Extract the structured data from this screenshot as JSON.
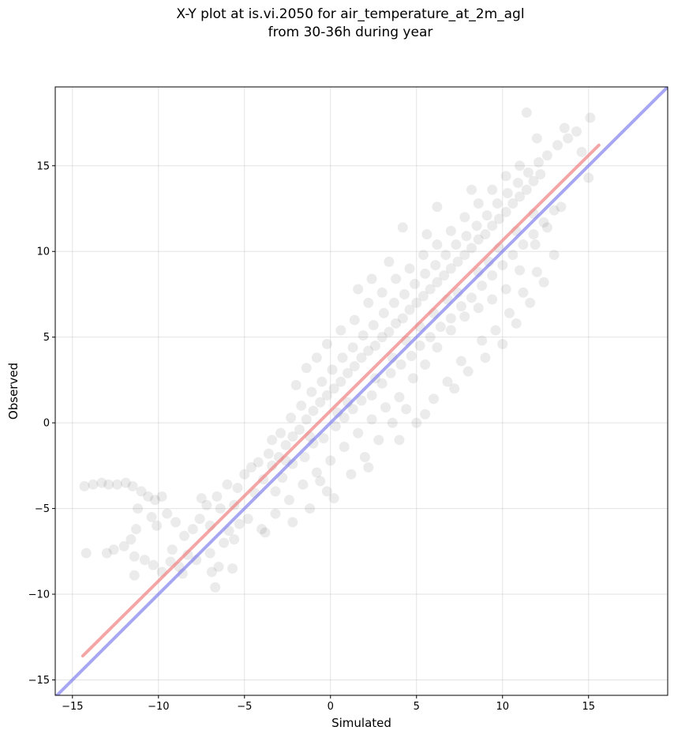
{
  "chart_data": {
    "type": "scatter",
    "title": "X-Y plot at is.vi.2050 for air_temperature_at_2m_agl\nfrom 30-36h during year",
    "xlabel": "Simulated",
    "ylabel": "Observed",
    "xlim": [
      -16,
      19.6
    ],
    "ylim": [
      -15.9,
      19.6
    ],
    "xticks": [
      -15,
      -10,
      -5,
      0,
      5,
      10,
      15
    ],
    "yticks": [
      -15,
      -10,
      -5,
      0,
      5,
      10,
      15
    ],
    "xtick_labels": [
      "−15",
      "−10",
      "−5",
      "0",
      "5",
      "10",
      "15"
    ],
    "ytick_labels": [
      "−15",
      "−10",
      "−5",
      "0",
      "5",
      "10",
      "15"
    ],
    "grid": true,
    "point_style": {
      "color": "#000000",
      "alpha": 0.08
    },
    "regression_line": {
      "color": "#f08080",
      "x": [
        -14.4,
        15.6
      ],
      "y": [
        -13.6,
        16.2
      ]
    },
    "identity_line": {
      "color": "#8080ee",
      "x": [
        -16,
        19.6
      ],
      "y": [
        -16,
        19.6
      ]
    },
    "points": [
      [
        -14.3,
        -3.7
      ],
      [
        -13.8,
        -3.6
      ],
      [
        -13.3,
        -3.5
      ],
      [
        -12.9,
        -3.6
      ],
      [
        -12.4,
        -3.6
      ],
      [
        -11.9,
        -3.5
      ],
      [
        -11.5,
        -3.7
      ],
      [
        -11.0,
        -4.0
      ],
      [
        -10.6,
        -4.3
      ],
      [
        -10.2,
        -4.5
      ],
      [
        -9.8,
        -4.3
      ],
      [
        -10.4,
        -5.5
      ],
      [
        -11.2,
        -5.0
      ],
      [
        -10.1,
        -6.0
      ],
      [
        -9.5,
        -5.3
      ],
      [
        -9.0,
        -5.8
      ],
      [
        -11.3,
        -6.2
      ],
      [
        -11.6,
        -6.8
      ],
      [
        -12.0,
        -7.2
      ],
      [
        -12.6,
        -7.4
      ],
      [
        -14.2,
        -7.6
      ],
      [
        -13.0,
        -7.6
      ],
      [
        -11.4,
        -7.8
      ],
      [
        -10.8,
        -8.0
      ],
      [
        -10.3,
        -8.3
      ],
      [
        -9.8,
        -8.7
      ],
      [
        -9.3,
        -8.1
      ],
      [
        -8.8,
        -8.4
      ],
      [
        -8.3,
        -7.7
      ],
      [
        -11.4,
        -8.9
      ],
      [
        -9.2,
        -7.4
      ],
      [
        -8.5,
        -6.6
      ],
      [
        -8.0,
        -6.2
      ],
      [
        -7.6,
        -5.6
      ],
      [
        -7.2,
        -4.8
      ],
      [
        -7.5,
        -4.4
      ],
      [
        -6.9,
        -8.7
      ],
      [
        -6.7,
        -9.6
      ],
      [
        -6.5,
        -8.4
      ],
      [
        -7.0,
        -7.6
      ],
      [
        -6.2,
        -7.0
      ],
      [
        -5.6,
        -6.8
      ],
      [
        -5.7,
        -8.5
      ],
      [
        -5.9,
        -6.3
      ],
      [
        -5.3,
        -5.9
      ],
      [
        -4.8,
        -5.6
      ],
      [
        -6.6,
        -4.3
      ],
      [
        -6.0,
        -3.6
      ],
      [
        -5.0,
        -3.0
      ],
      [
        -4.4,
        -4.1
      ],
      [
        -3.9,
        -3.3
      ],
      [
        -3.4,
        -2.5
      ],
      [
        -3.0,
        -2.0
      ],
      [
        -2.6,
        -1.3
      ],
      [
        -2.2,
        -0.8
      ],
      [
        -1.8,
        -0.4
      ],
      [
        -1.4,
        0.2
      ],
      [
        -1.0,
        0.7
      ],
      [
        -0.6,
        1.2
      ],
      [
        -0.2,
        1.6
      ],
      [
        0.2,
        2.0
      ],
      [
        0.6,
        2.4
      ],
      [
        1.0,
        2.9
      ],
      [
        1.4,
        3.3
      ],
      [
        1.8,
        3.8
      ],
      [
        2.2,
        4.2
      ],
      [
        2.6,
        4.5
      ],
      [
        3.0,
        5.0
      ],
      [
        3.4,
        5.3
      ],
      [
        3.8,
        5.8
      ],
      [
        4.2,
        6.1
      ],
      [
        4.6,
        6.6
      ],
      [
        5.0,
        7.0
      ],
      [
        5.4,
        7.4
      ],
      [
        5.8,
        7.8
      ],
      [
        6.2,
        8.2
      ],
      [
        6.6,
        8.6
      ],
      [
        7.0,
        9.0
      ],
      [
        7.4,
        9.4
      ],
      [
        7.8,
        9.8
      ],
      [
        8.2,
        10.2
      ],
      [
        8.6,
        10.7
      ],
      [
        9.0,
        11.0
      ],
      [
        9.4,
        11.5
      ],
      [
        9.8,
        11.9
      ],
      [
        10.2,
        12.3
      ],
      [
        10.6,
        12.8
      ],
      [
        11.0,
        13.2
      ],
      [
        11.4,
        13.6
      ],
      [
        11.8,
        14.1
      ],
      [
        12.2,
        14.5
      ],
      [
        -3.2,
        -4.0
      ],
      [
        -2.8,
        -3.2
      ],
      [
        -2.2,
        -2.4
      ],
      [
        -1.5,
        -2.0
      ],
      [
        -1.0,
        -1.2
      ],
      [
        -0.4,
        -0.9
      ],
      [
        0.3,
        -0.2
      ],
      [
        0.8,
        0.3
      ],
      [
        1.3,
        0.8
      ],
      [
        1.8,
        1.3
      ],
      [
        2.4,
        1.6
      ],
      [
        3.0,
        2.3
      ],
      [
        3.5,
        2.9
      ],
      [
        4.1,
        3.4
      ],
      [
        4.7,
        3.9
      ],
      [
        5.2,
        4.5
      ],
      [
        5.8,
        5.0
      ],
      [
        6.4,
        5.6
      ],
      [
        7.0,
        6.1
      ],
      [
        7.6,
        6.8
      ],
      [
        8.2,
        7.3
      ],
      [
        8.8,
        8.0
      ],
      [
        9.4,
        8.6
      ],
      [
        10.0,
        9.2
      ],
      [
        10.6,
        9.8
      ],
      [
        11.2,
        10.4
      ],
      [
        11.8,
        11.0
      ],
      [
        12.4,
        11.7
      ],
      [
        13.0,
        12.4
      ],
      [
        -4.2,
        -2.3
      ],
      [
        -3.6,
        -1.8
      ],
      [
        -2.9,
        -0.6
      ],
      [
        -2.3,
        0.3
      ],
      [
        -1.7,
        1.0
      ],
      [
        -1.1,
        1.8
      ],
      [
        -0.5,
        2.4
      ],
      [
        0.1,
        3.1
      ],
      [
        0.7,
        3.8
      ],
      [
        1.3,
        4.4
      ],
      [
        1.9,
        5.1
      ],
      [
        2.5,
        5.7
      ],
      [
        3.1,
        6.4
      ],
      [
        3.7,
        7.0
      ],
      [
        4.3,
        7.5
      ],
      [
        4.9,
        8.1
      ],
      [
        5.5,
        8.7
      ],
      [
        6.1,
        9.2
      ],
      [
        6.7,
        9.8
      ],
      [
        7.3,
        10.4
      ],
      [
        7.9,
        10.9
      ],
      [
        8.5,
        11.5
      ],
      [
        9.1,
        12.1
      ],
      [
        9.7,
        12.8
      ],
      [
        10.3,
        13.4
      ],
      [
        10.9,
        14.0
      ],
      [
        11.5,
        14.6
      ],
      [
        12.1,
        15.2
      ],
      [
        12.6,
        15.6
      ],
      [
        13.2,
        16.2
      ],
      [
        13.8,
        16.6
      ],
      [
        14.3,
        17.0
      ],
      [
        15.1,
        17.8
      ],
      [
        13.6,
        17.2
      ],
      [
        11.4,
        18.1
      ],
      [
        12.0,
        16.6
      ],
      [
        14.6,
        15.8
      ],
      [
        15.0,
        14.3
      ],
      [
        13.4,
        12.6
      ],
      [
        12.6,
        11.4
      ],
      [
        11.9,
        10.4
      ],
      [
        11.0,
        8.9
      ],
      [
        10.2,
        7.8
      ],
      [
        9.4,
        7.2
      ],
      [
        8.6,
        6.7
      ],
      [
        7.8,
        6.2
      ],
      [
        7.0,
        5.4
      ],
      [
        6.2,
        4.4
      ],
      [
        5.5,
        3.4
      ],
      [
        4.8,
        2.6
      ],
      [
        4.0,
        1.5
      ],
      [
        3.2,
        0.9
      ],
      [
        2.4,
        0.2
      ],
      [
        1.6,
        -0.6
      ],
      [
        0.8,
        -1.4
      ],
      [
        0.0,
        -2.2
      ],
      [
        -0.8,
        -2.9
      ],
      [
        -1.6,
        -3.6
      ],
      [
        -2.4,
        -4.5
      ],
      [
        -3.2,
        -5.3
      ],
      [
        -4.0,
        -6.2
      ],
      [
        0.2,
        -4.4
      ],
      [
        -0.6,
        -3.4
      ],
      [
        1.2,
        -3.0
      ],
      [
        2.0,
        -2.0
      ],
      [
        2.8,
        -1.0
      ],
      [
        3.6,
        0.0
      ],
      [
        4.4,
        0.8
      ],
      [
        5.5,
        0.5
      ],
      [
        6.8,
        2.4
      ],
      [
        7.6,
        3.6
      ],
      [
        8.8,
        4.8
      ],
      [
        9.6,
        5.4
      ],
      [
        10.4,
        6.4
      ],
      [
        11.2,
        7.6
      ],
      [
        12.0,
        8.8
      ],
      [
        13.0,
        9.8
      ],
      [
        -1.4,
        3.2
      ],
      [
        -0.8,
        3.8
      ],
      [
        -0.2,
        4.6
      ],
      [
        0.6,
        5.4
      ],
      [
        1.4,
        6.0
      ],
      [
        2.2,
        7.0
      ],
      [
        3.0,
        7.6
      ],
      [
        3.8,
        8.4
      ],
      [
        4.6,
        9.0
      ],
      [
        5.4,
        9.8
      ],
      [
        6.2,
        10.4
      ],
      [
        7.0,
        11.2
      ],
      [
        7.8,
        12.0
      ],
      [
        8.6,
        12.8
      ],
      [
        9.4,
        13.6
      ],
      [
        10.2,
        14.4
      ],
      [
        11.0,
        15.0
      ],
      [
        2.4,
        8.4
      ],
      [
        4.2,
        11.4
      ],
      [
        5.6,
        11.0
      ],
      [
        6.2,
        12.6
      ],
      [
        8.2,
        13.6
      ],
      [
        -2.0,
        2.2
      ],
      [
        1.6,
        7.8
      ],
      [
        3.4,
        9.4
      ],
      [
        -3.4,
        -1.0
      ],
      [
        -4.6,
        -2.6
      ],
      [
        -5.4,
        -3.8
      ],
      [
        -6.4,
        -5.0
      ],
      [
        -5.6,
        -4.8
      ],
      [
        -7.0,
        -6.0
      ],
      [
        -8.6,
        -8.8
      ],
      [
        -7.8,
        -8.0
      ],
      [
        -3.8,
        -6.4
      ],
      [
        -2.2,
        -5.8
      ],
      [
        -1.2,
        -5.0
      ],
      [
        -0.2,
        -4.0
      ],
      [
        2.2,
        -2.6
      ],
      [
        4.0,
        -1.0
      ],
      [
        5.0,
        0.0
      ],
      [
        6.0,
        1.4
      ],
      [
        7.2,
        2.0
      ],
      [
        8.0,
        3.0
      ],
      [
        9.0,
        3.8
      ],
      [
        10.0,
        4.6
      ],
      [
        10.8,
        5.8
      ],
      [
        11.6,
        7.0
      ],
      [
        12.4,
        8.2
      ],
      [
        2.6,
        2.6
      ],
      [
        5.2,
        5.6
      ],
      [
        7.4,
        7.6
      ],
      [
        9.2,
        9.4
      ],
      [
        1.0,
        1.2
      ],
      [
        3.6,
        3.8
      ],
      [
        6.0,
        6.4
      ],
      [
        8.6,
        8.8
      ],
      [
        10.8,
        11.2
      ],
      [
        -2.6,
        -2.2
      ],
      [
        -1.2,
        -0.8
      ],
      [
        0.4,
        0.6
      ],
      [
        4.4,
        4.8
      ],
      [
        6.8,
        7.2
      ],
      [
        9.8,
        10.2
      ],
      [
        11.8,
        12.2
      ]
    ]
  }
}
